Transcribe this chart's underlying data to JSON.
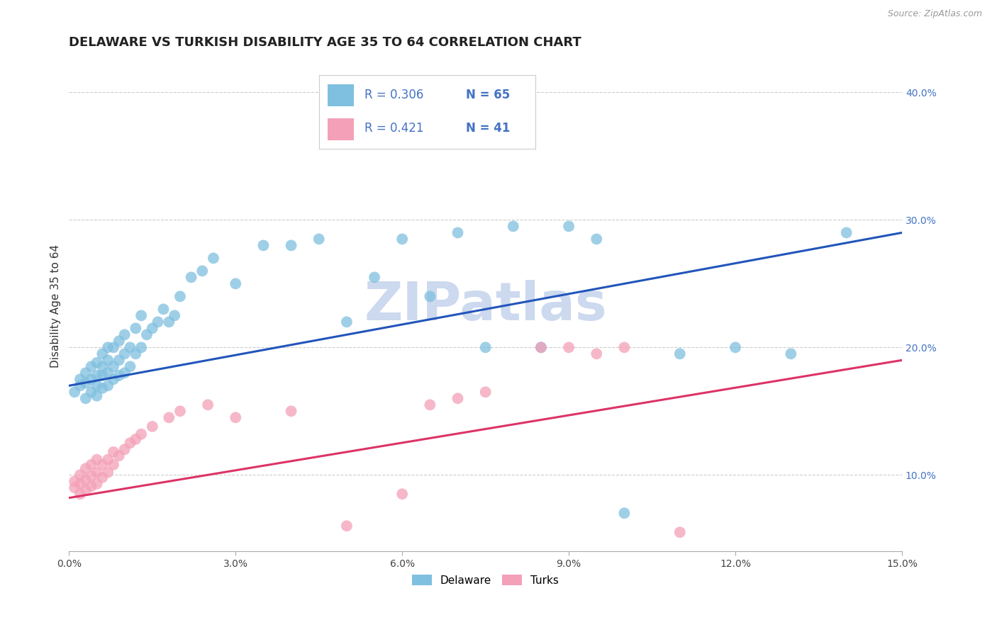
{
  "title": "DELAWARE VS TURKISH DISABILITY AGE 35 TO 64 CORRELATION CHART",
  "source_text": "Source: ZipAtlas.com",
  "ylabel": "Disability Age 35 to 64",
  "xlim": [
    0.0,
    0.15
  ],
  "ylim": [
    0.04,
    0.425
  ],
  "xticks": [
    0.0,
    0.03,
    0.06,
    0.09,
    0.12,
    0.15
  ],
  "xticklabels": [
    "0.0%",
    "3.0%",
    "6.0%",
    "9.0%",
    "12.0%",
    "15.0%"
  ],
  "yticks_right": [
    0.1,
    0.2,
    0.3,
    0.4
  ],
  "ytick_right_labels": [
    "10.0%",
    "20.0%",
    "30.0%",
    "40.0%"
  ],
  "grid_color": "#cccccc",
  "bg_color": "#ffffff",
  "watermark": "ZIPatlas",
  "watermark_color": "#ccd9ee",
  "legend_r1": "R = 0.306",
  "legend_n1": "N = 65",
  "legend_r2": "R = 0.421",
  "legend_n2": "N = 41",
  "delaware_color": "#7fbfdf",
  "turks_color": "#f4a0b8",
  "delaware_line_color": "#2255bb",
  "turks_line_color": "#dd3366",
  "blue_intercept": 0.17,
  "blue_slope": 0.8,
  "pink_intercept": 0.082,
  "pink_slope": 0.72,
  "delaware_x": [
    0.001,
    0.002,
    0.002,
    0.003,
    0.003,
    0.003,
    0.004,
    0.004,
    0.004,
    0.005,
    0.005,
    0.005,
    0.005,
    0.006,
    0.006,
    0.006,
    0.006,
    0.007,
    0.007,
    0.007,
    0.007,
    0.008,
    0.008,
    0.008,
    0.009,
    0.009,
    0.009,
    0.01,
    0.01,
    0.01,
    0.011,
    0.011,
    0.012,
    0.012,
    0.013,
    0.013,
    0.014,
    0.015,
    0.016,
    0.017,
    0.018,
    0.019,
    0.02,
    0.022,
    0.024,
    0.026,
    0.03,
    0.035,
    0.04,
    0.045,
    0.05,
    0.055,
    0.06,
    0.065,
    0.07,
    0.075,
    0.08,
    0.085,
    0.09,
    0.095,
    0.1,
    0.11,
    0.12,
    0.13,
    0.14
  ],
  "delaware_y": [
    0.165,
    0.17,
    0.175,
    0.16,
    0.172,
    0.18,
    0.165,
    0.175,
    0.185,
    0.162,
    0.17,
    0.178,
    0.188,
    0.168,
    0.178,
    0.185,
    0.195,
    0.17,
    0.18,
    0.19,
    0.2,
    0.175,
    0.185,
    0.2,
    0.178,
    0.19,
    0.205,
    0.18,
    0.195,
    0.21,
    0.185,
    0.2,
    0.195,
    0.215,
    0.2,
    0.225,
    0.21,
    0.215,
    0.22,
    0.23,
    0.22,
    0.225,
    0.24,
    0.255,
    0.26,
    0.27,
    0.25,
    0.28,
    0.28,
    0.285,
    0.22,
    0.255,
    0.285,
    0.24,
    0.29,
    0.2,
    0.295,
    0.2,
    0.295,
    0.285,
    0.07,
    0.195,
    0.2,
    0.195,
    0.29
  ],
  "turks_x": [
    0.001,
    0.001,
    0.002,
    0.002,
    0.002,
    0.003,
    0.003,
    0.003,
    0.004,
    0.004,
    0.004,
    0.005,
    0.005,
    0.005,
    0.006,
    0.006,
    0.007,
    0.007,
    0.008,
    0.008,
    0.009,
    0.01,
    0.011,
    0.012,
    0.013,
    0.015,
    0.018,
    0.02,
    0.025,
    0.03,
    0.04,
    0.05,
    0.06,
    0.065,
    0.07,
    0.075,
    0.085,
    0.09,
    0.095,
    0.1,
    0.11
  ],
  "turks_y": [
    0.09,
    0.095,
    0.085,
    0.093,
    0.1,
    0.088,
    0.096,
    0.105,
    0.091,
    0.099,
    0.108,
    0.093,
    0.102,
    0.112,
    0.098,
    0.108,
    0.102,
    0.112,
    0.108,
    0.118,
    0.115,
    0.12,
    0.125,
    0.128,
    0.132,
    0.138,
    0.145,
    0.15,
    0.155,
    0.145,
    0.15,
    0.06,
    0.085,
    0.155,
    0.16,
    0.165,
    0.2,
    0.2,
    0.195,
    0.2,
    0.055
  ],
  "title_fontsize": 13,
  "axis_label_fontsize": 11,
  "tick_fontsize": 10
}
